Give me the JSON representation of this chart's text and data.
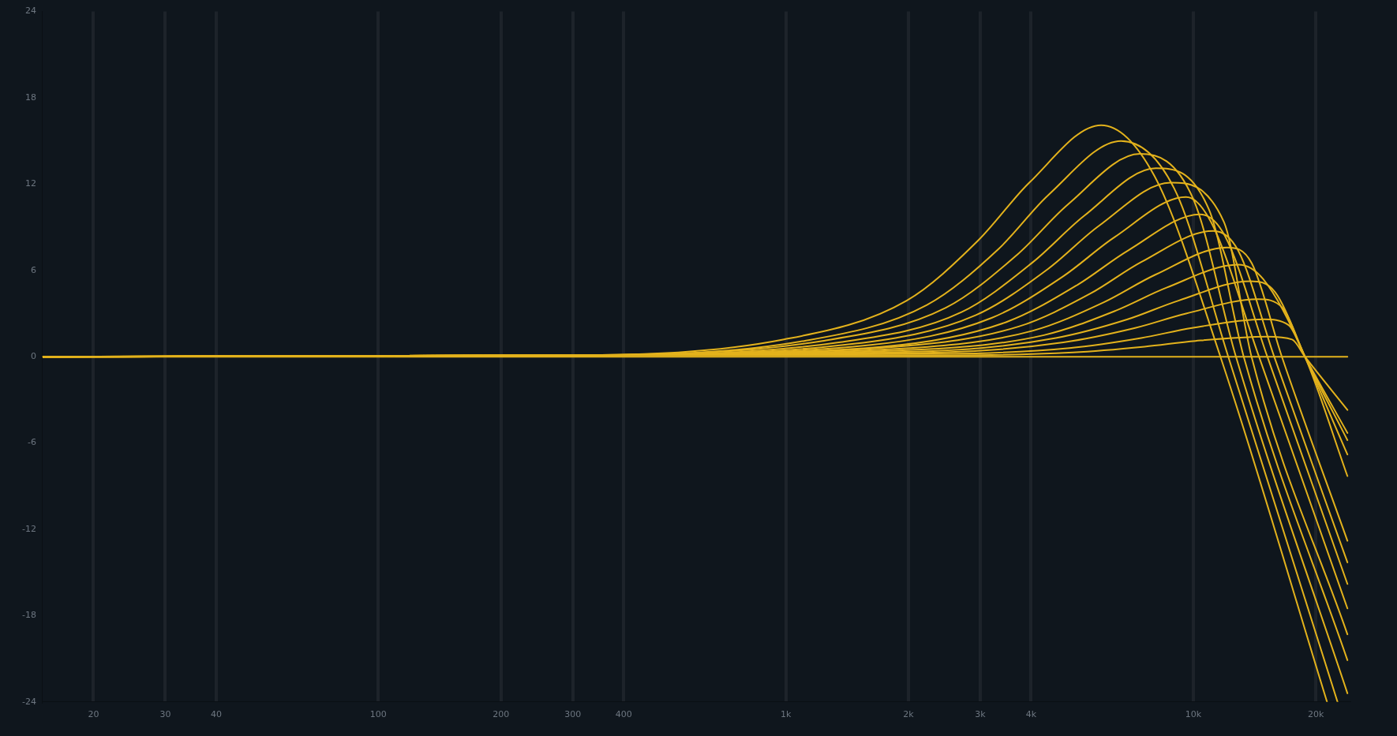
{
  "chart_data": {
    "type": "line",
    "marker": "none",
    "line_style": "solid",
    "legend": false,
    "grid": "x",
    "log": "x",
    "xlim": [
      15,
      24200
    ],
    "ylim": [
      -24,
      24
    ],
    "xticks": [
      20,
      30,
      40,
      100,
      200,
      300,
      400,
      {
        "value": 1000,
        "label": "1k"
      },
      {
        "value": 2000,
        "label": "2k"
      },
      {
        "value": 3000,
        "label": "3k"
      },
      {
        "value": 4000,
        "label": "4k"
      },
      {
        "value": 10000,
        "label": "10k"
      },
      {
        "value": 20000,
        "label": "20k"
      }
    ],
    "yticks": [
      -24,
      -18,
      -12,
      -6,
      0,
      6,
      12,
      18,
      24
    ],
    "series": [
      {
        "color": "#e3b21c",
        "x": [
          15,
          300,
          990,
          1980,
          2970,
          3960,
          5940,
          8020,
          11660,
          21300
        ],
        "values": [
          0,
          0.1,
          1.2,
          3.9,
          8.1,
          12.1,
          16.1,
          12.6,
          0,
          -24
        ]
      },
      {
        "color": "#e3b21c",
        "x": [
          15,
          300,
          1110,
          2220,
          3330,
          4430,
          6650,
          8980,
          12190,
          22600
        ],
        "values": [
          0,
          0.1,
          1.1,
          3.6,
          7.5,
          11.3,
          15,
          11.7,
          0,
          -24
        ]
      },
      {
        "color": "#e3b21c",
        "x": [
          15,
          300,
          1230,
          2470,
          3700,
          4930,
          7400,
          9990,
          12730,
          23900
        ],
        "values": [
          0,
          0.1,
          1.1,
          3.4,
          7.1,
          10.6,
          14.1,
          11,
          0,
          -23.4
        ]
      },
      {
        "color": "#e3b21c",
        "x": [
          15,
          300,
          1350,
          2700,
          4050,
          5400,
          8100,
          10940,
          13300,
          23900
        ],
        "values": [
          0,
          0.1,
          1,
          3.1,
          6.6,
          9.8,
          13.1,
          10.2,
          0,
          -21.1
        ]
      },
      {
        "color": "#e3b21c",
        "x": [
          15,
          300,
          1470,
          2930,
          4400,
          5870,
          8800,
          11880,
          13900,
          23900
        ],
        "values": [
          0,
          0.1,
          0.9,
          2.9,
          6.1,
          9.1,
          12.1,
          9.4,
          0,
          -19.3
        ]
      },
      {
        "color": "#e3b21c",
        "x": [
          15,
          300,
          1600,
          3200,
          4800,
          6400,
          9600,
          11040,
          14500,
          23900
        ],
        "values": [
          0,
          0.1,
          0.8,
          2.7,
          5.6,
          8.3,
          11.1,
          9.4,
          0,
          -17.5
        ]
      },
      {
        "color": "#e3b21c",
        "x": [
          15,
          300,
          1730,
          3470,
          5200,
          6930,
          10400,
          11960,
          15200,
          23900
        ],
        "values": [
          0,
          0.1,
          0.7,
          2.4,
          5,
          7.4,
          9.9,
          8.4,
          0,
          -15.8
        ]
      },
      {
        "color": "#e3b21c",
        "x": [
          15,
          300,
          1870,
          3730,
          5600,
          7470,
          11200,
          12880,
          15800,
          23900
        ],
        "values": [
          0,
          0.1,
          0.7,
          2.1,
          4.4,
          6.6,
          8.75,
          7.4,
          0,
          -14.3
        ]
      },
      {
        "color": "#e3b21c",
        "x": [
          15,
          300,
          2020,
          4030,
          6050,
          8070,
          12100,
          13920,
          16500,
          23900
        ],
        "values": [
          0,
          0.1,
          0.6,
          1.8,
          3.8,
          5.7,
          7.6,
          6.5,
          0,
          -12.8
        ]
      },
      {
        "color": "#e3b21c",
        "x": [
          15,
          300,
          2150,
          4300,
          6450,
          8600,
          12900,
          14840,
          18800,
          23900
        ],
        "values": [
          0,
          0.1,
          0.5,
          1.5,
          3.2,
          4.8,
          6.4,
          5.4,
          0,
          -8.3
        ]
      },
      {
        "color": "#e3b21c",
        "x": [
          15,
          300,
          2300,
          4600,
          6900,
          9200,
          13800,
          15870,
          18800,
          23900
        ],
        "values": [
          0,
          0.1,
          0.4,
          1.3,
          2.6,
          3.9,
          5.25,
          4.5,
          0,
          -6.8
        ]
      },
      {
        "color": "#e3b21c",
        "x": [
          15,
          300,
          2400,
          4800,
          7200,
          9600,
          14400,
          16560,
          18800,
          23900
        ],
        "values": [
          0,
          0.1,
          0.3,
          1,
          2,
          3,
          4,
          3.4,
          0,
          -5.8
        ]
      },
      {
        "color": "#e3b21c",
        "x": [
          15,
          300,
          2480,
          4970,
          7450,
          9930,
          14900,
          17140,
          18800,
          23900
        ],
        "values": [
          0,
          0.1,
          0.2,
          0.6,
          1.3,
          2,
          2.6,
          2.2,
          0,
          -5.3
        ]
      },
      {
        "color": "#e3b21c",
        "x": [
          15,
          300,
          2530,
          5070,
          7600,
          10130,
          15200,
          17480,
          18800,
          23900
        ],
        "values": [
          0,
          0.1,
          0.1,
          0.3,
          0.7,
          1.1,
          1.4,
          1.2,
          0,
          -3.7
        ]
      },
      {
        "color": "#e3b21c",
        "x": [
          15,
          23900
        ],
        "values": [
          0,
          0
        ]
      }
    ]
  }
}
